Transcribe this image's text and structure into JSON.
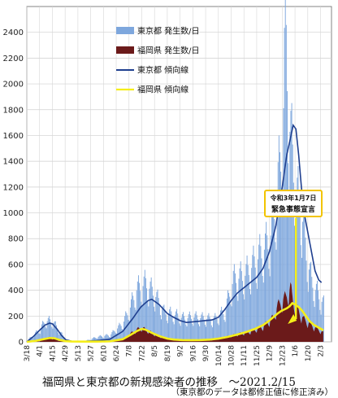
{
  "chart_data": {
    "type": "bar",
    "ylim": [
      0,
      2600
    ],
    "yticks": [
      0,
      200,
      400,
      600,
      800,
      1000,
      1200,
      1400,
      1600,
      1800,
      2000,
      2200,
      2400
    ],
    "xticks": [
      "3/18",
      "4/1",
      "4/15",
      "4/29",
      "5/13",
      "5/27",
      "6/10",
      "6/24",
      "7/8",
      "7/22",
      "8/5",
      "8/19",
      "9/2",
      "9/16",
      "9/30",
      "10/14",
      "10/28",
      "11/11",
      "11/25",
      "12/9",
      "12/23",
      "1/6",
      "1/20",
      "2/3"
    ],
    "grid": true,
    "legend_position": "top-center",
    "series": [
      {
        "name": "東京都 発生数/日",
        "kind": "bar",
        "color": "#7ea7dd"
      },
      {
        "name": "福岡県 発生数/日",
        "kind": "area",
        "color": "#6b1a1a"
      },
      {
        "name": "東京都 傾向線",
        "kind": "line",
        "color": "#1f3f8f"
      },
      {
        "name": "福岡県 傾向線",
        "kind": "line",
        "color": "#f5ee1a"
      }
    ],
    "tokyo_bar_keypoints": [
      [
        0,
        10
      ],
      [
        14,
        100
      ],
      [
        20,
        170
      ],
      [
        28,
        165
      ],
      [
        35,
        90
      ],
      [
        42,
        20
      ],
      [
        49,
        8
      ],
      [
        63,
        5
      ],
      [
        77,
        40
      ],
      [
        91,
        55
      ],
      [
        105,
        150
      ],
      [
        112,
        260
      ],
      [
        120,
        420
      ],
      [
        130,
        470
      ],
      [
        140,
        380
      ],
      [
        150,
        240
      ],
      [
        161,
        220
      ],
      [
        172,
        190
      ],
      [
        182,
        200
      ],
      [
        194,
        190
      ],
      [
        205,
        180
      ],
      [
        217,
        250
      ],
      [
        226,
        500
      ],
      [
        238,
        530
      ],
      [
        250,
        640
      ],
      [
        266,
        820
      ],
      [
        274,
        1200
      ],
      [
        280,
        1600
      ],
      [
        283,
        2520
      ],
      [
        287,
        1800
      ],
      [
        294,
        1200
      ],
      [
        301,
        1050
      ],
      [
        306,
        700
      ],
      [
        312,
        480
      ],
      [
        319,
        380
      ],
      [
        325,
        300
      ]
    ],
    "tokyo_trend_keypoints": [
      [
        0,
        0
      ],
      [
        7,
        40
      ],
      [
        14,
        90
      ],
      [
        20,
        130
      ],
      [
        25,
        145
      ],
      [
        28,
        140
      ],
      [
        33,
        100
      ],
      [
        38,
        50
      ],
      [
        43,
        15
      ],
      [
        49,
        5
      ],
      [
        63,
        4
      ],
      [
        77,
        10
      ],
      [
        91,
        20
      ],
      [
        105,
        80
      ],
      [
        116,
        180
      ],
      [
        125,
        270
      ],
      [
        133,
        320
      ],
      [
        137,
        330
      ],
      [
        145,
        290
      ],
      [
        154,
        220
      ],
      [
        161,
        190
      ],
      [
        168,
        165
      ],
      [
        175,
        150
      ],
      [
        182,
        155
      ],
      [
        189,
        160
      ],
      [
        196,
        165
      ],
      [
        203,
        170
      ],
      [
        210,
        190
      ],
      [
        217,
        250
      ],
      [
        224,
        320
      ],
      [
        231,
        380
      ],
      [
        238,
        420
      ],
      [
        245,
        460
      ],
      [
        252,
        500
      ],
      [
        259,
        570
      ],
      [
        266,
        700
      ],
      [
        273,
        900
      ],
      [
        280,
        1200
      ],
      [
        285,
        1450
      ],
      [
        289,
        1580
      ],
      [
        292,
        1680
      ],
      [
        295,
        1650
      ],
      [
        298,
        1450
      ],
      [
        301,
        1200
      ],
      [
        304,
        1000
      ],
      [
        308,
        850
      ],
      [
        312,
        700
      ],
      [
        316,
        550
      ],
      [
        320,
        480
      ],
      [
        323,
        460
      ]
    ],
    "fukuoka_area_keypoints": [
      [
        0,
        0
      ],
      [
        14,
        5
      ],
      [
        20,
        20
      ],
      [
        25,
        35
      ],
      [
        28,
        25
      ],
      [
        35,
        10
      ],
      [
        42,
        3
      ],
      [
        49,
        2
      ],
      [
        63,
        1
      ],
      [
        77,
        2
      ],
      [
        91,
        3
      ],
      [
        105,
        20
      ],
      [
        115,
        70
      ],
      [
        122,
        100
      ],
      [
        126,
        110
      ],
      [
        132,
        90
      ],
      [
        140,
        60
      ],
      [
        150,
        30
      ],
      [
        161,
        15
      ],
      [
        175,
        10
      ],
      [
        190,
        12
      ],
      [
        205,
        15
      ],
      [
        217,
        35
      ],
      [
        231,
        60
      ],
      [
        245,
        80
      ],
      [
        259,
        120
      ],
      [
        270,
        190
      ],
      [
        275,
        280
      ],
      [
        280,
        320
      ],
      [
        284,
        350
      ],
      [
        289,
        420
      ],
      [
        292,
        320
      ],
      [
        297,
        250
      ],
      [
        303,
        180
      ],
      [
        310,
        140
      ],
      [
        316,
        110
      ],
      [
        321,
        90
      ],
      [
        325,
        70
      ]
    ],
    "fukuoka_trend_keypoints": [
      [
        0,
        0
      ],
      [
        10,
        8
      ],
      [
        18,
        20
      ],
      [
        25,
        30
      ],
      [
        30,
        28
      ],
      [
        36,
        15
      ],
      [
        42,
        6
      ],
      [
        49,
        3
      ],
      [
        63,
        2
      ],
      [
        77,
        2
      ],
      [
        91,
        4
      ],
      [
        105,
        20
      ],
      [
        114,
        55
      ],
      [
        121,
        85
      ],
      [
        126,
        100
      ],
      [
        130,
        95
      ],
      [
        137,
        70
      ],
      [
        145,
        45
      ],
      [
        154,
        25
      ],
      [
        161,
        18
      ],
      [
        170,
        14
      ],
      [
        180,
        13
      ],
      [
        190,
        14
      ],
      [
        200,
        17
      ],
      [
        210,
        25
      ],
      [
        220,
        38
      ],
      [
        230,
        55
      ],
      [
        240,
        75
      ],
      [
        250,
        100
      ],
      [
        259,
        130
      ],
      [
        265,
        160
      ],
      [
        270,
        190
      ],
      [
        275,
        220
      ],
      [
        279,
        240
      ],
      [
        282,
        250
      ],
      [
        285,
        260
      ],
      [
        288,
        275
      ],
      [
        291,
        300
      ],
      [
        294,
        290
      ],
      [
        298,
        270
      ],
      [
        302,
        240
      ],
      [
        306,
        200
      ],
      [
        310,
        160
      ],
      [
        315,
        130
      ],
      [
        320,
        110
      ],
      [
        325,
        90
      ]
    ],
    "annotation_text_1": "令和3年1月7日",
    "annotation_text_2": "緊急事態宣言",
    "annotation_day": 295,
    "caption": "福岡県と東京都の新規感染者の推移　～2021.2/15",
    "caption_note": "（東京都のデータは都修正値に修正済み）"
  }
}
